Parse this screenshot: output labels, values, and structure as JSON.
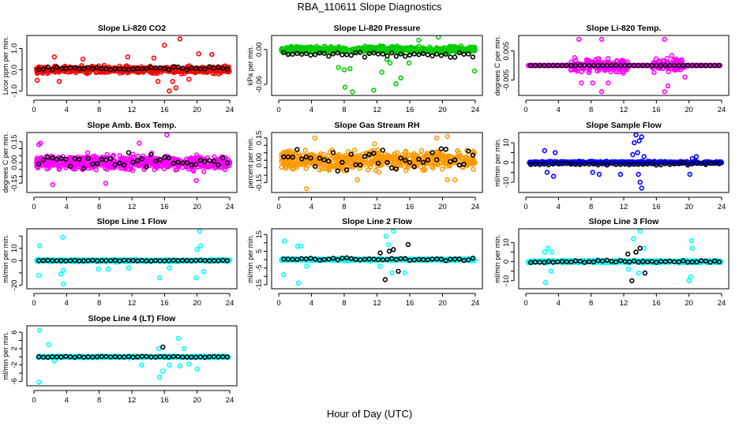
{
  "title": "RBA_110611  Slope Diagnostics",
  "xlabel": "Hour of Day (UTC)",
  "chart_data": [
    {
      "type": "scatter",
      "title": "Slope Li-820 CO2",
      "xlabel": "Hour of Day (UTC)",
      "ylabel": "Licor ppm per min.",
      "xlim": [
        0,
        24
      ],
      "ylim": [
        -1.1,
        1.5
      ],
      "xticks": [
        "0",
        "4",
        "8",
        "12",
        "16",
        "20",
        "24"
      ],
      "yticks": [
        {
          "v": -1.0,
          "label": "-1.0"
        },
        {
          "v": 0.0,
          "label": "0.0"
        },
        {
          "v": 1.0,
          "label": "1.0"
        }
      ],
      "color": "#ff0000",
      "spread": 0.28,
      "outliers": [
        [
          16.0,
          1.15
        ],
        [
          17.9,
          1.45
        ],
        [
          16.6,
          -1.0
        ],
        [
          17.4,
          -0.85
        ],
        [
          2.5,
          0.6
        ],
        [
          11.5,
          0.6
        ],
        [
          20.2,
          0.75
        ],
        [
          21.8,
          0.72
        ],
        [
          0.4,
          -0.5
        ],
        [
          3.1,
          -0.55
        ],
        [
          15.2,
          -0.55
        ],
        [
          17.0,
          -0.55
        ],
        [
          19.0,
          -0.45
        ],
        [
          6.0,
          0.5
        ],
        [
          14.7,
          0.55
        ]
      ],
      "black_mean": 0.05,
      "black_spread": 0.1
    },
    {
      "type": "scatter",
      "title": "Slope Li-820 Pressure",
      "xlabel": "Hour of Day (UTC)",
      "ylabel": "kPa per min.",
      "xlim": [
        0,
        24
      ],
      "ylim": [
        -0.075,
        0.02
      ],
      "xticks": [
        "0",
        "4",
        "8",
        "12",
        "16",
        "20",
        "24"
      ],
      "yticks": [
        {
          "v": -0.06,
          "label": "-0.06"
        },
        {
          "v": 0.0,
          "label": "0.00"
        }
      ],
      "color": "#00cc00",
      "spread": 0.009,
      "outliers": [
        [
          8.1,
          -0.065
        ],
        [
          9.0,
          -0.073
        ],
        [
          11.6,
          -0.07
        ],
        [
          7.3,
          -0.031
        ],
        [
          8.0,
          -0.035
        ],
        [
          8.7,
          -0.033
        ],
        [
          12.6,
          -0.039
        ],
        [
          14.3,
          -0.059
        ],
        [
          14.9,
          -0.049
        ],
        [
          13.6,
          -0.023
        ],
        [
          15.9,
          -0.023
        ],
        [
          23.9,
          -0.037
        ],
        [
          19.5,
          0.022
        ],
        [
          17.1,
          0.016
        ],
        [
          13.2,
          -0.017
        ]
      ],
      "black_mean": -0.008,
      "black_spread": 0.006
    },
    {
      "type": "scatter",
      "title": "Slope Li-820 Temp.",
      "xlabel": "Hour of Day (UTC)",
      "ylabel": "degrees C per min.",
      "xlim": [
        0,
        24
      ],
      "ylim": [
        -0.0095,
        0.0095
      ],
      "xticks": [
        "0",
        "4",
        "8",
        "12",
        "16",
        "20",
        "24"
      ],
      "yticks": [
        {
          "v": -0.005,
          "label": "-0.005"
        },
        {
          "v": 0.005,
          "label": "0.005"
        }
      ],
      "color": "#ff00ff",
      "spread": 0.004,
      "active_ranges": [
        [
          5.5,
          12.5
        ],
        [
          15.5,
          19.5
        ]
      ],
      "outliers": [
        [
          6.5,
          0.009
        ],
        [
          9.3,
          0.009
        ],
        [
          9.3,
          -0.009
        ],
        [
          17.0,
          0.009
        ],
        [
          17.0,
          -0.009
        ],
        [
          6.8,
          -0.006
        ],
        [
          8.2,
          -0.006
        ],
        [
          10.1,
          -0.006
        ],
        [
          17.4,
          -0.007
        ],
        [
          19.5,
          -0.004
        ]
      ],
      "black_mean": 0.0,
      "black_spread": 0.0
    },
    {
      "type": "scatter",
      "title": "Slope Amb. Box Temp.",
      "xlabel": "Hour of Day (UTC)",
      "ylabel": "degrees C per min.",
      "xlim": [
        0,
        24
      ],
      "ylim": [
        -0.2,
        0.2
      ],
      "xticks": [
        "0",
        "4",
        "8",
        "12",
        "16",
        "20",
        "24"
      ],
      "yticks": [
        {
          "v": -0.15,
          "label": "-0.15"
        },
        {
          "v": -0.1,
          "label": ""
        },
        {
          "v": -0.05,
          "label": ""
        },
        {
          "v": 0.0,
          "label": "0.00"
        },
        {
          "v": 0.05,
          "label": ""
        },
        {
          "v": 0.1,
          "label": ""
        },
        {
          "v": 0.15,
          "label": "0.15"
        }
      ],
      "color": "#ff00ff",
      "spread": 0.09,
      "outliers": [
        [
          16.3,
          0.2
        ],
        [
          2.3,
          -0.16
        ],
        [
          8.8,
          -0.15
        ],
        [
          19.9,
          -0.13
        ],
        [
          0.6,
          0.13
        ],
        [
          0.8,
          0.14
        ],
        [
          12.9,
          0.14
        ]
      ],
      "black_mean": 0.01,
      "black_spread": 0.06
    },
    {
      "type": "scatter",
      "title": "Slope Gas Stream RH",
      "xlabel": "Hour of Day (UTC)",
      "ylabel": "percent per min.",
      "xlim": [
        0,
        24
      ],
      "ylim": [
        -0.2,
        0.17
      ],
      "xticks": [
        "0",
        "4",
        "8",
        "12",
        "16",
        "20",
        "24"
      ],
      "yticks": [
        {
          "v": -0.15,
          "label": "-0.15"
        },
        {
          "v": -0.1,
          "label": ""
        },
        {
          "v": -0.05,
          "label": ""
        },
        {
          "v": 0.0,
          "label": "0.00"
        },
        {
          "v": 0.05,
          "label": ""
        },
        {
          "v": 0.1,
          "label": ""
        },
        {
          "v": 0.15,
          "label": "0.15"
        }
      ],
      "color": "#ff9900",
      "spread": 0.11,
      "outliers": [
        [
          3.4,
          -0.19
        ],
        [
          9.6,
          -0.13
        ],
        [
          20.6,
          -0.13
        ],
        [
          21.5,
          -0.13
        ],
        [
          4.4,
          0.15
        ],
        [
          11.7,
          0.11
        ],
        [
          19.3,
          0.15
        ],
        [
          20.6,
          0.16
        ]
      ],
      "black_mean": 0.01,
      "black_spread": 0.07
    },
    {
      "type": "scatter",
      "title": "Slope Sample Flow",
      "xlabel": "Hour of Day (UTC)",
      "ylabel": "ml/min per min.",
      "xlim": [
        0,
        24
      ],
      "ylim": [
        -14,
        14
      ],
      "xticks": [
        "0",
        "4",
        "8",
        "12",
        "16",
        "20",
        "24"
      ],
      "yticks": [
        {
          "v": -10,
          "label": "-10"
        },
        {
          "v": -5,
          "label": ""
        },
        {
          "v": 0,
          "label": "0"
        },
        {
          "v": 5,
          "label": ""
        },
        {
          "v": 10,
          "label": "10"
        }
      ],
      "color": "#0000ff",
      "spread": 1.0,
      "outliers": [
        [
          13.5,
          14
        ],
        [
          14.2,
          13
        ],
        [
          13.3,
          10
        ],
        [
          13.9,
          11
        ],
        [
          14.2,
          -13
        ],
        [
          14.0,
          -10
        ],
        [
          2.3,
          6
        ],
        [
          3.6,
          5
        ],
        [
          3.4,
          -7
        ],
        [
          2.6,
          -5
        ],
        [
          8.2,
          -5
        ],
        [
          9.0,
          -6
        ],
        [
          11.6,
          -6
        ],
        [
          13.1,
          4
        ],
        [
          13.7,
          5
        ],
        [
          14.5,
          3
        ],
        [
          13.8,
          -6
        ],
        [
          20.1,
          -6
        ],
        [
          20.4,
          2
        ],
        [
          20.9,
          3
        ]
      ],
      "black_mean": -0.8,
      "black_spread": 0.6
    },
    {
      "type": "scatter",
      "title": "Slope Line 1 Flow",
      "xlabel": "Hour of Day (UTC)",
      "ylabel": "ml/min per min.",
      "xlim": [
        0,
        24
      ],
      "ylim": [
        -21,
        24
      ],
      "xticks": [
        "0",
        "4",
        "8",
        "12",
        "16",
        "20",
        "24"
      ],
      "yticks": [
        {
          "v": -20,
          "label": "-20"
        },
        {
          "v": -10,
          "label": ""
        },
        {
          "v": 0,
          "label": "0"
        },
        {
          "v": 10,
          "label": "10"
        },
        {
          "v": 20,
          "label": ""
        }
      ],
      "color": "#00ffff",
      "spread": 1.5,
      "outliers": [
        [
          20.3,
          24
        ],
        [
          3.5,
          19
        ],
        [
          0.7,
          12
        ],
        [
          20.4,
          12
        ],
        [
          20.0,
          9
        ],
        [
          3.6,
          -19
        ],
        [
          0.6,
          -12
        ],
        [
          3.3,
          -11
        ],
        [
          15.4,
          -14
        ],
        [
          19.9,
          -14
        ],
        [
          3.6,
          -8
        ],
        [
          7.9,
          -7
        ],
        [
          9.1,
          -7
        ],
        [
          11.6,
          -6
        ],
        [
          16.6,
          -6
        ],
        [
          20.8,
          -9
        ]
      ],
      "black_mean": 0.0,
      "black_spread": 0.3
    },
    {
      "type": "scatter",
      "title": "Slope Line 2 Flow",
      "xlabel": "Hour of Day (UTC)",
      "ylabel": "ml/min per min.",
      "xlim": [
        0,
        24
      ],
      "ylim": [
        -16,
        17
      ],
      "xticks": [
        "0",
        "4",
        "8",
        "12",
        "16",
        "20",
        "24"
      ],
      "yticks": [
        {
          "v": -15,
          "label": "-15"
        },
        {
          "v": -10,
          "label": ""
        },
        {
          "v": -5,
          "label": "-5"
        },
        {
          "v": 0,
          "label": ""
        },
        {
          "v": 5,
          "label": "5"
        },
        {
          "v": 10,
          "label": ""
        },
        {
          "v": 15,
          "label": "15"
        }
      ],
      "color": "#00ffff",
      "spread": 1.2,
      "outliers": [
        [
          14.0,
          17
        ],
        [
          13.1,
          14
        ],
        [
          0.7,
          11
        ],
        [
          2.3,
          8
        ],
        [
          2.7,
          8
        ],
        [
          0.6,
          -9
        ],
        [
          2.4,
          -14
        ],
        [
          13.8,
          -8
        ],
        [
          15.4,
          -8
        ],
        [
          12.4,
          -4
        ],
        [
          3.4,
          -4
        ],
        [
          13.4,
          9
        ]
      ],
      "black_mean": 0.2,
      "black_spread": 0.8,
      "black_outliers": [
        [
          13.0,
          -12
        ],
        [
          15.8,
          9
        ],
        [
          14.6,
          -7
        ],
        [
          12.4,
          4
        ],
        [
          14.0,
          6
        ],
        [
          13.5,
          5
        ]
      ]
    },
    {
      "type": "scatter",
      "title": "Slope Line 3 Flow",
      "xlabel": "Hour of Day (UTC)",
      "ylabel": "ml/min per min.",
      "xlim": [
        0,
        24
      ],
      "ylim": [
        -13,
        16
      ],
      "xticks": [
        "0",
        "4",
        "8",
        "12",
        "16",
        "20",
        "24"
      ],
      "yticks": [
        {
          "v": -10,
          "label": "-10"
        },
        {
          "v": -5,
          "label": ""
        },
        {
          "v": 0,
          "label": "0"
        },
        {
          "v": 5,
          "label": ""
        },
        {
          "v": 10,
          "label": "10"
        }
      ],
      "color": "#00ffff",
      "spread": 1.1,
      "outliers": [
        [
          14.0,
          16
        ],
        [
          13.2,
          12
        ],
        [
          20.3,
          11
        ],
        [
          20.4,
          7
        ],
        [
          2.7,
          7
        ],
        [
          2.3,
          5
        ],
        [
          3.2,
          5
        ],
        [
          14.5,
          7
        ],
        [
          2.4,
          -11
        ],
        [
          3.1,
          -5
        ],
        [
          13.8,
          -6
        ],
        [
          20.0,
          -10
        ],
        [
          20.2,
          -8
        ],
        [
          12.6,
          -4
        ]
      ],
      "black_mean": 0.0,
      "black_spread": 0.6,
      "black_outliers": [
        [
          13.0,
          -10
        ],
        [
          14.0,
          7
        ],
        [
          13.5,
          5
        ],
        [
          14.6,
          -6
        ],
        [
          12.5,
          4
        ]
      ]
    },
    {
      "type": "scatter",
      "title": "Slope Line 4 (LT) Flow",
      "xlabel": "Hour of Day (UTC)",
      "ylabel": "ml/min per min.",
      "xlim": [
        0,
        24
      ],
      "ylim": [
        -6.5,
        7
      ],
      "xticks": [
        "0",
        "4",
        "8",
        "12",
        "16",
        "20",
        "24"
      ],
      "yticks": [
        {
          "v": -6,
          "label": "-6"
        },
        {
          "v": -4,
          "label": ""
        },
        {
          "v": -2,
          "label": "-2"
        },
        {
          "v": 0,
          "label": ""
        },
        {
          "v": 2,
          "label": "2"
        },
        {
          "v": 4,
          "label": ""
        },
        {
          "v": 6,
          "label": "6"
        }
      ],
      "color": "#00ffff",
      "spread": 0.35,
      "outliers": [
        [
          0.7,
          6.5
        ],
        [
          0.6,
          -6.2
        ],
        [
          1.8,
          3
        ],
        [
          17.7,
          4.5
        ],
        [
          15.3,
          2
        ],
        [
          18.4,
          2
        ],
        [
          15.4,
          -5
        ],
        [
          15.8,
          -3.5
        ],
        [
          16.6,
          -2
        ],
        [
          17.9,
          -2.2
        ],
        [
          20.0,
          -3
        ],
        [
          19.0,
          -1.8
        ],
        [
          13.2,
          -2
        ],
        [
          2.5,
          -1
        ]
      ],
      "black_mean": 0.0,
      "black_spread": 0.1,
      "black_outliers": [
        [
          15.8,
          2.4
        ]
      ]
    }
  ]
}
